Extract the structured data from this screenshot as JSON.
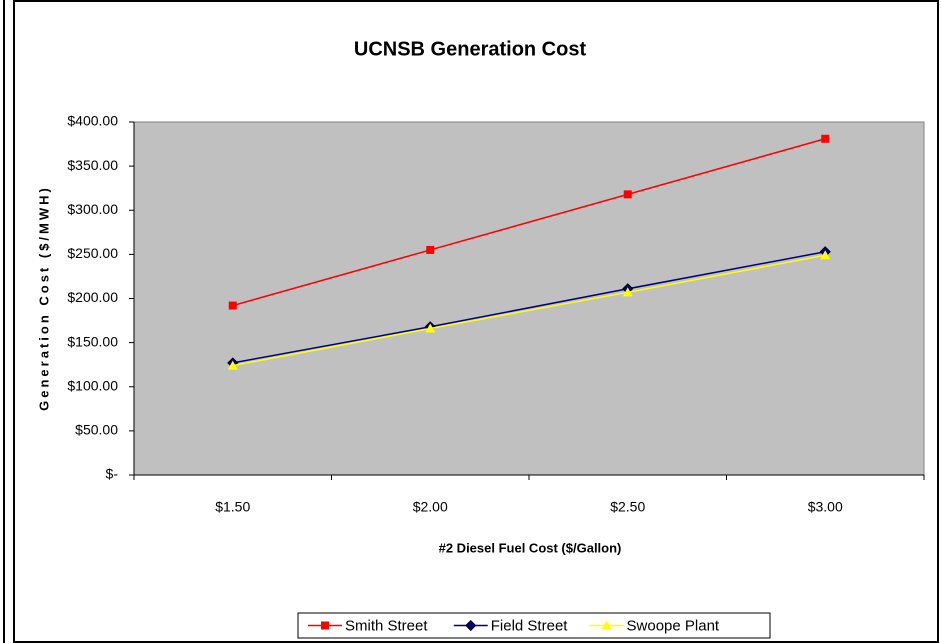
{
  "chart_data": {
    "type": "line",
    "title": "UCNSB Generation Cost",
    "x_label": "#2 Diesel Fuel Cost ($/Gallon)",
    "y_label": "Generation Cost ($/MWH)",
    "categories": [
      "$1.50",
      "$2.00",
      "$2.50",
      "$3.00"
    ],
    "series": [
      {
        "name": "Smith Street",
        "color": "#ff0000",
        "marker": "square",
        "values": [
          192,
          255,
          318,
          381
        ]
      },
      {
        "name": "Field Street",
        "color": "#000080",
        "marker": "diamond",
        "values": [
          127,
          168,
          211,
          253
        ]
      },
      {
        "name": "Swoope Plant",
        "color": "#ffff00",
        "marker": "triangle",
        "values": [
          124,
          166,
          207,
          249
        ]
      }
    ],
    "ylim": [
      0,
      400
    ],
    "yticks": [
      {
        "value": 0,
        "label": "$-"
      },
      {
        "value": 50,
        "label": "$50.00"
      },
      {
        "value": 100,
        "label": "$100.00"
      },
      {
        "value": 150,
        "label": "$150.00"
      },
      {
        "value": 200,
        "label": "$200.00"
      },
      {
        "value": 250,
        "label": "$250.00"
      },
      {
        "value": 300,
        "label": "$300.00"
      },
      {
        "value": 350,
        "label": "$350.00"
      },
      {
        "value": 400,
        "label": "$400.00"
      }
    ],
    "plot_background": "#c0c0c0",
    "legend_position": "bottom"
  }
}
